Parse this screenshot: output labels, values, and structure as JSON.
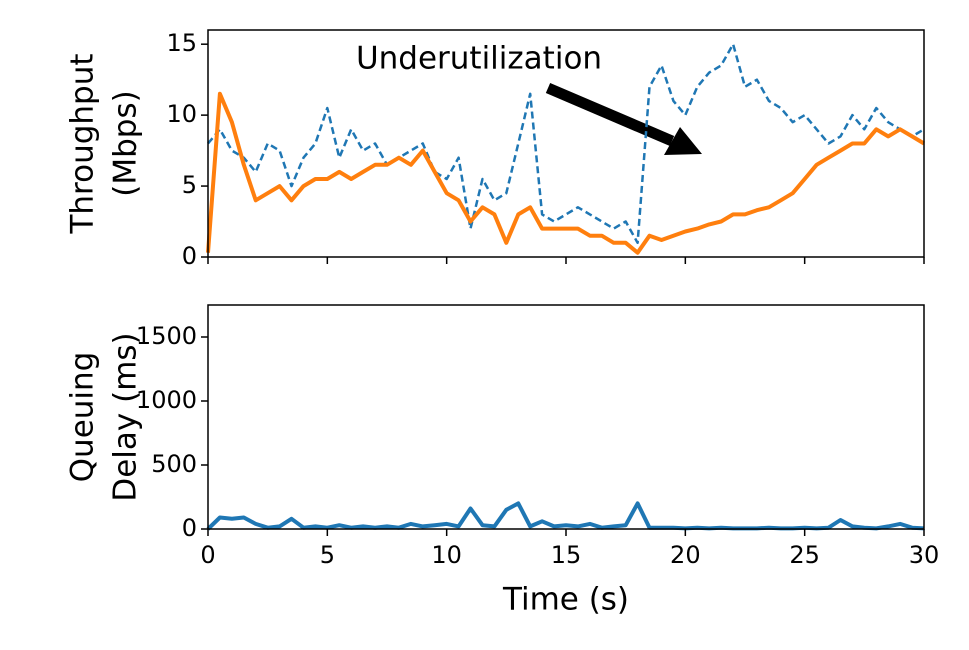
{
  "chart_data": [
    {
      "type": "line",
      "ylabel_lines": [
        "Throughput",
        "(Mbps)"
      ],
      "annotation": "Underutilization",
      "x": [
        0,
        0.5,
        1,
        1.5,
        2,
        2.5,
        3,
        3.5,
        4,
        4.5,
        5,
        5.5,
        6,
        6.5,
        7,
        7.5,
        8,
        8.5,
        9,
        9.5,
        10,
        10.5,
        11,
        11.5,
        12,
        12.5,
        13,
        13.5,
        14,
        14.5,
        15,
        15.5,
        16,
        16.5,
        17,
        17.5,
        18,
        18.5,
        19,
        19.5,
        20,
        20.5,
        21,
        21.5,
        22,
        22.5,
        23,
        23.5,
        24,
        24.5,
        25,
        25.5,
        26,
        26.5,
        27,
        27.5,
        28,
        28.5,
        29,
        29.5,
        30
      ],
      "series": [
        {
          "color": "#1f77b4",
          "dashed": true,
          "width": 2.5,
          "values": [
            8,
            9,
            7.5,
            7,
            6,
            8,
            7.5,
            5,
            7,
            8,
            10.5,
            7,
            9,
            7.5,
            8,
            6.5,
            7,
            7.5,
            8,
            6,
            5.5,
            7,
            2,
            5.5,
            4,
            4.5,
            8,
            11.5,
            3,
            2.5,
            3,
            3.5,
            3,
            2.5,
            2,
            2.5,
            1,
            12,
            13.5,
            11,
            10,
            12,
            13,
            13.5,
            15,
            12,
            12.5,
            11,
            10.5,
            9.5,
            10,
            9,
            8,
            8.5,
            10,
            9,
            10.5,
            9.5,
            9,
            8.5,
            9
          ]
        },
        {
          "color": "#ff7f0e",
          "dashed": false,
          "width": 4,
          "values": [
            0.3,
            11.5,
            9.5,
            6.5,
            4,
            4.5,
            5,
            4,
            5,
            5.5,
            5.5,
            6,
            5.5,
            6,
            6.5,
            6.5,
            7,
            6.5,
            7.5,
            6,
            4.5,
            4,
            2.5,
            3.5,
            3,
            1,
            3,
            3.5,
            2,
            2,
            2,
            2,
            1.5,
            1.5,
            1,
            1,
            0.3,
            1.5,
            1.2,
            1.5,
            1.8,
            2,
            2.3,
            2.5,
            3,
            3,
            3.3,
            3.5,
            4,
            4.5,
            5.5,
            6.5,
            7,
            7.5,
            8,
            8,
            9,
            8.5,
            9,
            8.5,
            8
          ]
        }
      ],
      "xlim": [
        0,
        30
      ],
      "xticks": [
        0,
        5,
        10,
        15,
        20,
        25,
        30
      ],
      "show_xtick_labels": false,
      "ylim": [
        0,
        16
      ],
      "yticks": [
        0,
        5,
        10,
        15
      ]
    },
    {
      "type": "line",
      "ylabel_lines": [
        "Queuing",
        "Delay (ms)"
      ],
      "xlabel": "Time (s)",
      "x": [
        0,
        0.5,
        1,
        1.5,
        2,
        2.5,
        3,
        3.5,
        4,
        4.5,
        5,
        5.5,
        6,
        6.5,
        7,
        7.5,
        8,
        8.5,
        9,
        9.5,
        10,
        10.5,
        11,
        11.5,
        12,
        12.5,
        13,
        13.5,
        14,
        14.5,
        15,
        15.5,
        16,
        16.5,
        17,
        17.5,
        18,
        18.5,
        19,
        19.5,
        20,
        20.5,
        21,
        21.5,
        22,
        22.5,
        23,
        23.5,
        24,
        24.5,
        25,
        25.5,
        26,
        26.5,
        27,
        27.5,
        28,
        28.5,
        29,
        29.5,
        30
      ],
      "series": [
        {
          "color": "#1f77b4",
          "dashed": false,
          "width": 4,
          "values": [
            0,
            90,
            80,
            90,
            40,
            10,
            20,
            80,
            10,
            20,
            10,
            30,
            10,
            20,
            10,
            20,
            10,
            40,
            20,
            30,
            40,
            20,
            160,
            30,
            20,
            150,
            200,
            20,
            60,
            20,
            30,
            20,
            40,
            10,
            20,
            30,
            200,
            10,
            10,
            10,
            5,
            10,
            5,
            10,
            5,
            5,
            5,
            10,
            5,
            5,
            10,
            5,
            10,
            70,
            20,
            10,
            5,
            20,
            40,
            10,
            5
          ]
        }
      ],
      "xlim": [
        0,
        30
      ],
      "xticks": [
        0,
        5,
        10,
        15,
        20,
        25,
        30
      ],
      "show_xtick_labels": true,
      "ylim": [
        0,
        1750
      ],
      "yticks": [
        0,
        500,
        1000,
        1500
      ]
    }
  ]
}
